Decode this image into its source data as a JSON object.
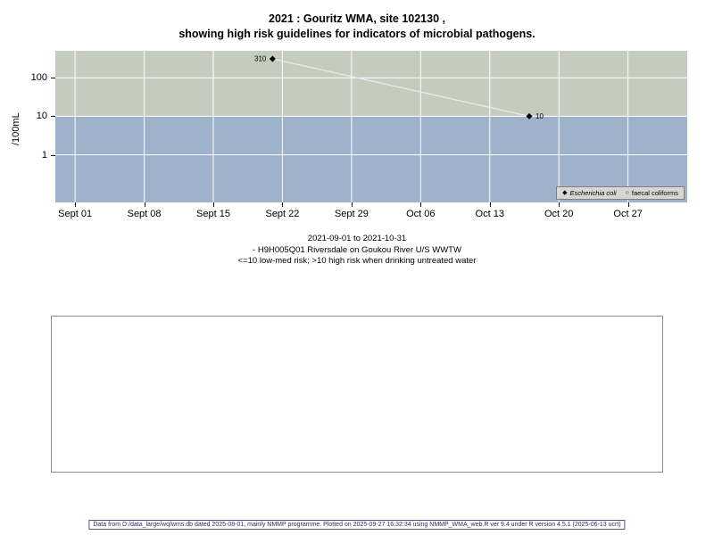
{
  "chart_data": {
    "type": "line",
    "title": "2021 : Gouritz WMA, site 102130 ,",
    "subtitle": "showing high risk guidelines for indicators of microbial pathogens.",
    "ylabel": "/100mL",
    "y_scale": "log",
    "ylim": [
      0.058,
      500
    ],
    "y_ticks": [
      100,
      10,
      1
    ],
    "x_domain_days": [
      -2,
      62
    ],
    "x_ticks": [
      {
        "label": "Sept 01",
        "day": 0
      },
      {
        "label": "Sept 08",
        "day": 7
      },
      {
        "label": "Sept 15",
        "day": 14
      },
      {
        "label": "Sept 22",
        "day": 21
      },
      {
        "label": "Sept 29",
        "day": 28
      },
      {
        "label": "Oct 06",
        "day": 35
      },
      {
        "label": "Oct 13",
        "day": 42
      },
      {
        "label": "Oct 20",
        "day": 49
      },
      {
        "label": "Oct 27",
        "day": 56
      }
    ],
    "grid_color": "#ffffff",
    "line_color": "#e8e8e8",
    "threshold": 10,
    "bands": [
      {
        "name": "high-risk",
        "from": 10,
        "to": 500,
        "color": "#c4ccbe"
      },
      {
        "name": "low-med-risk",
        "from": 0.058,
        "to": 10,
        "color": "#9fb2cb"
      }
    ],
    "series": [
      {
        "name": "Escherichia coli",
        "marker": "diamond",
        "points": [
          {
            "day": 20,
            "value": 310,
            "label": "310",
            "label_side": "left"
          },
          {
            "day": 46,
            "value": 10,
            "label": "10",
            "label_side": "right"
          }
        ]
      },
      {
        "name": "faecal coliforms",
        "marker": "circle",
        "points": []
      }
    ],
    "legend_position": "bottom-right"
  },
  "icons": {
    "diamond_marker": "◆",
    "circle_marker": "○"
  },
  "caption": {
    "line1": "2021-09-01 to 2021-10-31",
    "line2": "- H9H005Q01 Riversdale on Goukou River U/S WWTW",
    "line3": "<=10 low-med risk; >10 high risk when drinking untreated water"
  },
  "footer": {
    "text": "Data from D:/data_large/wq/wms.db dated 2025-08-01, mainly NMMP programme. Plotted on 2025-09-27 16:32:34 using NMMP_WMA_web.R ver 9.4 under R version 4.5.1 (2025-06-13 ucrt)"
  }
}
